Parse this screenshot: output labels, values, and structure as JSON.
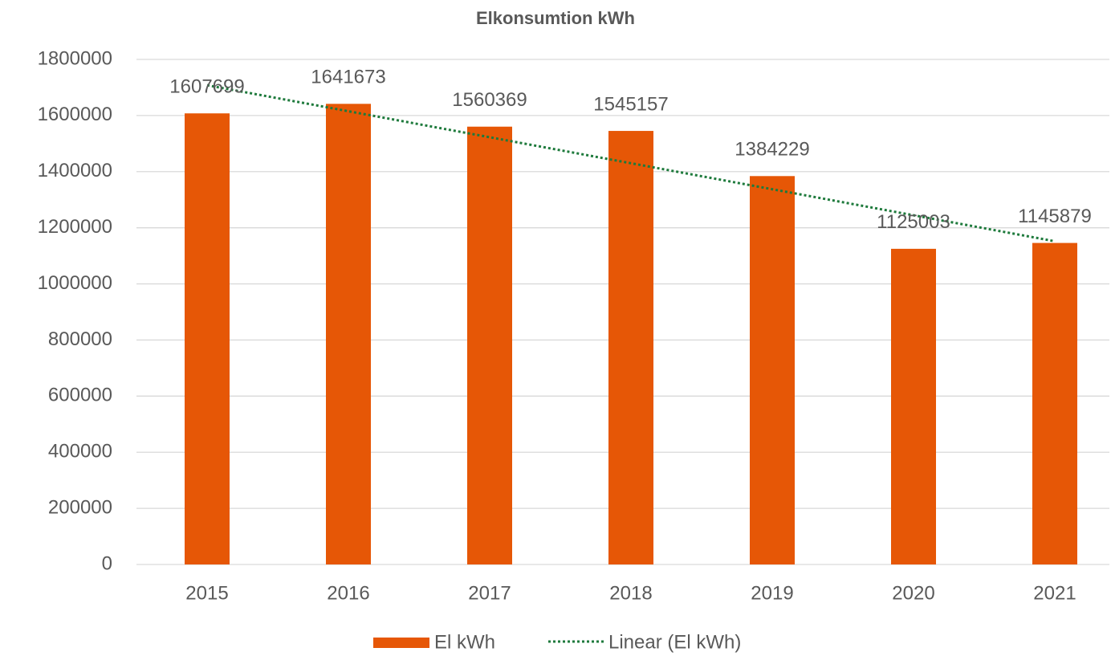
{
  "chart_data": {
    "type": "bar",
    "title": "Elkonsumtion kWh",
    "categories": [
      "2015",
      "2016",
      "2017",
      "2018",
      "2019",
      "2020",
      "2021"
    ],
    "series": [
      {
        "name": "El kWh",
        "color": "#e65706",
        "values": [
          1607699,
          1641673,
          1560369,
          1545157,
          1384229,
          1125003,
          1145879
        ]
      }
    ],
    "trendline": {
      "name": "Linear (El kWh)",
      "fit": "linear",
      "color": "#1e7a3c"
    },
    "ylim": [
      0,
      1800000
    ],
    "yticks": [
      0,
      200000,
      400000,
      600000,
      800000,
      1000000,
      1200000,
      1400000,
      1600000,
      1800000
    ],
    "grid": true,
    "legend": "bottom"
  }
}
